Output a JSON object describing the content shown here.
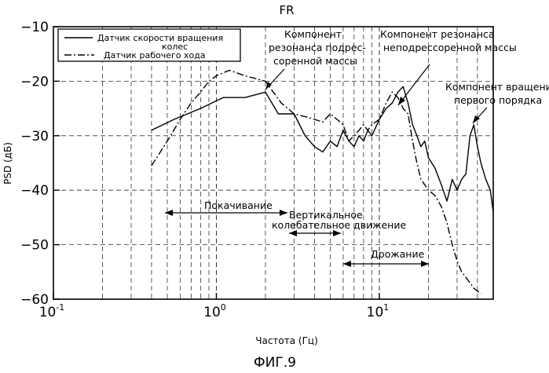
{
  "chart_data": {
    "type": "line",
    "title": "FR",
    "figure_caption": "ФИГ.9",
    "xlabel": "Частота (Гц)",
    "ylabel": "PSD (дБ)",
    "xscale": "log",
    "xlim": [
      0.1,
      50
    ],
    "ylim": [
      -60,
      -10
    ],
    "grid": true,
    "y_ticks": [
      "−10",
      "−20",
      "−30",
      "−40",
      "−50",
      "−60"
    ],
    "x_ticks": [
      {
        "base": "10",
        "exp": "-1",
        "value": 0.1
      },
      {
        "base": "10",
        "exp": "0",
        "value": 1
      },
      {
        "base": "10",
        "exp": "1",
        "value": 10
      }
    ],
    "legend": {
      "placement": "top-left",
      "entries": [
        {
          "lines": [
            "Датчик скорости вращения",
            "колес"
          ],
          "style": "solid"
        },
        {
          "lines": [
            "Датчик рабочего хода"
          ],
          "style": "dash-dot"
        }
      ]
    },
    "series": [
      {
        "style": "solid",
        "x": [
          0.4,
          0.55,
          0.8,
          1.1,
          1.5,
          2.0,
          2.4,
          3.0,
          3.5,
          4.0,
          4.5,
          5.0,
          5.5,
          6.0,
          6.5,
          7.0,
          7.5,
          8.0,
          8.5,
          9.0,
          10.0,
          11.0,
          12.0,
          13.0,
          14.0,
          15.0,
          16.0,
          17.0,
          18.0,
          19.0,
          20.0,
          22.0,
          24.0,
          26.0,
          28.0,
          30.0,
          32.0,
          34.0,
          36.0,
          38.0,
          40.0,
          42.0,
          45.0,
          48.0,
          50.0
        ],
        "y": [
          -29,
          -27,
          -25,
          -23,
          -23,
          -22,
          -26,
          -26,
          -30,
          -32,
          -33,
          -31,
          -32,
          -29,
          -31,
          -32,
          -30,
          -31,
          -29,
          -30,
          -27,
          -25,
          -24,
          -22,
          -21,
          -24,
          -28,
          -30,
          -32,
          -31,
          -34,
          -36,
          -39,
          -42,
          -38,
          -40,
          -38,
          -37,
          -30,
          -28,
          -32,
          -35,
          -38,
          -40,
          -44
        ]
      },
      {
        "style": "dash-dot",
        "x": [
          0.4,
          0.5,
          0.6,
          0.7,
          0.8,
          0.9,
          1.0,
          1.2,
          1.5,
          2.0,
          2.5,
          3.0,
          3.5,
          4.0,
          4.5,
          5.0,
          5.5,
          6.0,
          6.5,
          7.0,
          7.5,
          8.0,
          8.5,
          9.0,
          10.0,
          11.0,
          12.0,
          13.0,
          14.0,
          15.0,
          16.0,
          17.0,
          18.0,
          19.0,
          20.0,
          22.0,
          24.0,
          26.0,
          28.0,
          30.0,
          32.0,
          34.0,
          36.0,
          38.0,
          40.0,
          42.0
        ],
        "y": [
          -35.5,
          -31,
          -27,
          -24,
          -22,
          -20,
          -19,
          -18,
          -19,
          -20,
          -24,
          -26,
          -26.5,
          -27,
          -27.5,
          -26,
          -27,
          -28,
          -31,
          -30,
          -29,
          -28,
          -29,
          -28,
          -27,
          -24,
          -22,
          -23,
          -25,
          -26,
          -31,
          -35,
          -38,
          -39,
          -40,
          -41,
          -43,
          -46,
          -50,
          -53,
          -55,
          -56,
          -57,
          -58,
          -58.5,
          -59
        ]
      }
    ],
    "annotations": [
      {
        "lines": [
          "Компонент",
          "резонанса подрес-",
          "соренной массы"
        ]
      },
      {
        "lines": [
          "Компонент резонанса",
          "неподрессоренной массы"
        ]
      },
      {
        "lines": [
          "Компонент вращения",
          "первого порядка"
        ]
      },
      {
        "lines": [
          "Покачивание"
        ],
        "range": [
          0.4,
          2.9
        ]
      },
      {
        "lines": [
          "Вертикальное",
          "колебательное движение"
        ],
        "range": [
          3.0,
          6.0
        ]
      },
      {
        "lines": [
          "Дрожание"
        ],
        "range": [
          6.0,
          19.0
        ]
      }
    ]
  }
}
